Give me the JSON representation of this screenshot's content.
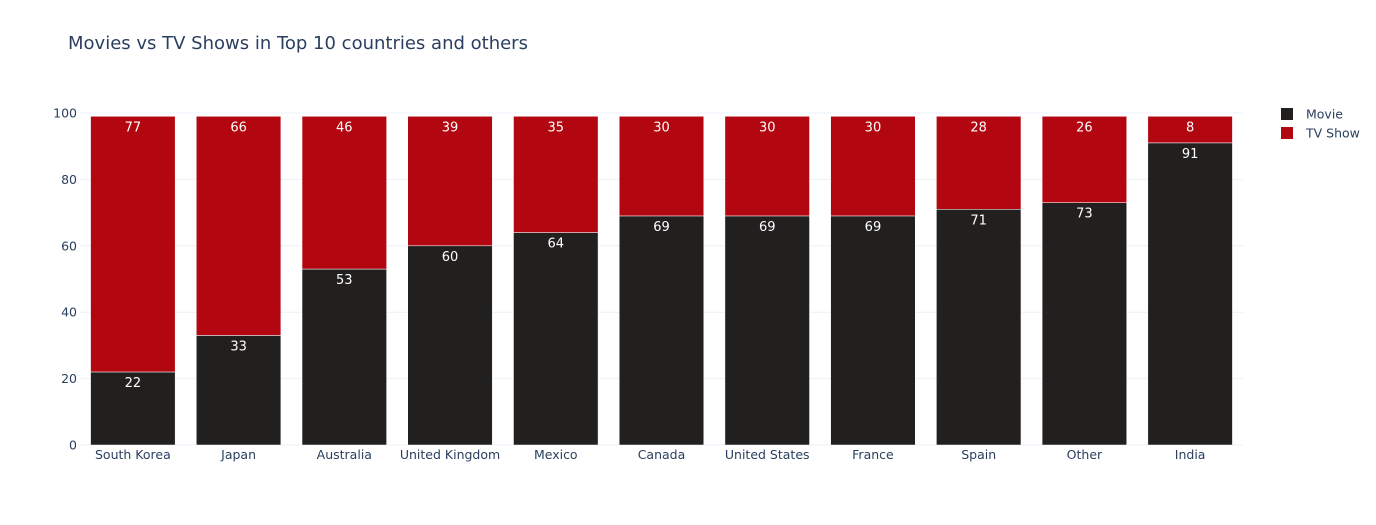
{
  "chart_data": {
    "type": "bar",
    "stacked": true,
    "title": "Movies vs TV Shows in Top 10 countries and others",
    "categories": [
      "South Korea",
      "Japan",
      "Australia",
      "United Kingdom",
      "Mexico",
      "Canada",
      "United States",
      "France",
      "Spain",
      "Other",
      "India"
    ],
    "series": [
      {
        "name": "Movie",
        "color": "#221f1f",
        "values": [
          22,
          33,
          53,
          60,
          64,
          69,
          69,
          69,
          71,
          73,
          91
        ]
      },
      {
        "name": "TV Show",
        "color": "#b20710",
        "values": [
          77,
          66,
          46,
          39,
          35,
          30,
          30,
          30,
          28,
          26,
          8
        ]
      }
    ],
    "ylim": [
      0,
      100
    ],
    "yticks": [
      0,
      20,
      40,
      60,
      80,
      100
    ],
    "grid": true,
    "legend": "top-right"
  }
}
